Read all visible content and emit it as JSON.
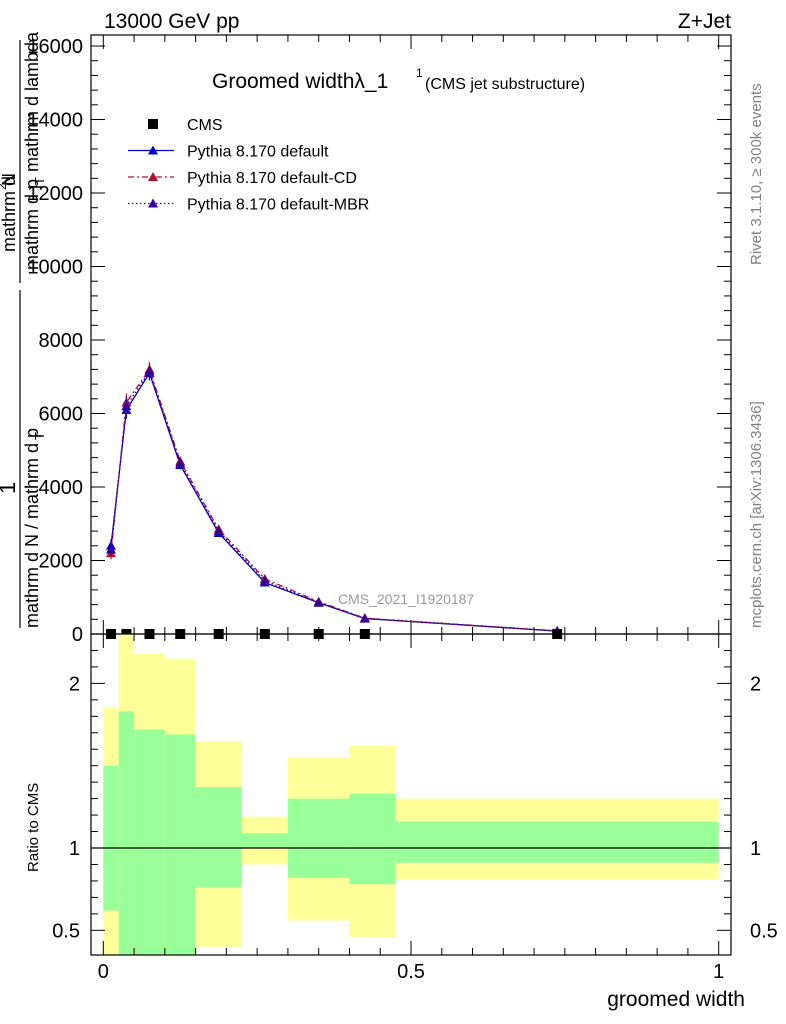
{
  "header": {
    "energy_label": "13000 GeV pp",
    "process_label": "Z+Jet"
  },
  "side_labels": {
    "rivet": "Rivet 3.1.10, ≥ 300k events",
    "mcplots": "mcplots.cern.ch [arXiv:1306.3436]"
  },
  "chart_data": [
    {
      "type": "line",
      "title": "Groomed widthλ_1",
      "title_sup": "1",
      "subtitle": "(CMS jet substructure)",
      "ylabel": "1 / mathrm d N / mathrm d p_T mathrm d^2N / mathrm d p_T mathrm d lambda",
      "ylabel_parts": {
        "left_numerator": "1",
        "left_denominator": "mathrm d N / mathrm d p",
        "left_subscript": "T",
        "right_numerator": "mathrm d",
        "right_numerator_sup": "2",
        "right_numerator_tail": "N",
        "right_denominator": "mathrm d p",
        "right_subscript": "T",
        "right_denominator_tail": "mathrm d lambda"
      },
      "xlim": [
        -0.02,
        1.02
      ],
      "ylim": [
        0,
        16300
      ],
      "yticks": [
        0,
        2000,
        4000,
        6000,
        8000,
        10000,
        12000,
        14000,
        16000
      ],
      "ytick_labels": [
        "0",
        "2000",
        "4000",
        "6000",
        "8000",
        "10000",
        "12000",
        "14000",
        "16000"
      ],
      "analysis_label": "CMS_2021_I1920187",
      "legend_position": "top-left",
      "x": [
        0.0125,
        0.0375,
        0.075,
        0.125,
        0.1875,
        0.2625,
        0.35,
        0.425,
        0.7375
      ],
      "series": [
        {
          "name": "CMS",
          "values": [
            0,
            0,
            0,
            0,
            0,
            0,
            0,
            0,
            0
          ],
          "color": "#000000",
          "style": "marker"
        },
        {
          "name": "Pythia 8.170 default",
          "values": [
            2400,
            6100,
            7100,
            4600,
            2750,
            1400,
            850,
            420,
            80
          ],
          "errors": [
            180,
            250,
            200,
            120,
            90,
            70,
            60,
            40,
            20
          ],
          "color": "#0000cc",
          "style": "solid"
        },
        {
          "name": "Pythia 8.170 default-CD",
          "values": [
            2200,
            6300,
            7200,
            4700,
            2850,
            1500,
            880,
            430,
            85
          ],
          "errors": [
            170,
            240,
            200,
            120,
            90,
            70,
            60,
            40,
            20
          ],
          "color": "#aa1133",
          "style": "dashdot"
        },
        {
          "name": "Pythia 8.170 default-MBR",
          "values": [
            2300,
            6200,
            7150,
            4650,
            2800,
            1450,
            860,
            425,
            82
          ],
          "errors": [
            170,
            240,
            200,
            120,
            90,
            70,
            60,
            40,
            20
          ],
          "color": "#330099",
          "style": "dotted"
        }
      ]
    },
    {
      "type": "area",
      "ylabel": "Ratio to CMS",
      "xlabel": "groomed width",
      "xlim": [
        -0.02,
        1.02
      ],
      "ylim": [
        0.35,
        2.3
      ],
      "xticks": [
        0,
        0.5,
        1
      ],
      "xtick_labels": [
        "0",
        "0.5",
        "1"
      ],
      "yticks": [
        0.5,
        1,
        2
      ],
      "ytick_labels": [
        "0.5",
        "1",
        "2"
      ],
      "bins": [
        {
          "x0": 0.0,
          "x1": 0.025,
          "green": [
            0.62,
            1.5
          ],
          "yellow": [
            0.3,
            1.85
          ]
        },
        {
          "x0": 0.025,
          "x1": 0.05,
          "green": [
            0.3,
            1.83
          ],
          "yellow": [
            0.3,
            2.3
          ]
        },
        {
          "x0": 0.05,
          "x1": 0.1,
          "green": [
            0.3,
            1.72
          ],
          "yellow": [
            0.3,
            2.18
          ]
        },
        {
          "x0": 0.1,
          "x1": 0.15,
          "green": [
            0.3,
            1.69
          ],
          "yellow": [
            0.3,
            2.15
          ]
        },
        {
          "x0": 0.15,
          "x1": 0.225,
          "green": [
            0.76,
            1.37
          ],
          "yellow": [
            0.4,
            1.65
          ]
        },
        {
          "x0": 0.225,
          "x1": 0.3,
          "green": [
            1.0,
            1.09
          ],
          "yellow": [
            0.9,
            1.19
          ]
        },
        {
          "x0": 0.3,
          "x1": 0.4,
          "green": [
            0.82,
            1.3
          ],
          "yellow": [
            0.56,
            1.55
          ]
        },
        {
          "x0": 0.4,
          "x1": 0.475,
          "green": [
            0.78,
            1.33
          ],
          "yellow": [
            0.46,
            1.62
          ]
        },
        {
          "x0": 0.475,
          "x1": 1.0,
          "green": [
            0.91,
            1.16
          ],
          "yellow": [
            0.81,
            1.3
          ]
        }
      ]
    }
  ],
  "colors": {
    "band_inner": "#99ff99",
    "band_outer": "#ffff99",
    "axis": "#000000",
    "side_text": "#808080"
  }
}
